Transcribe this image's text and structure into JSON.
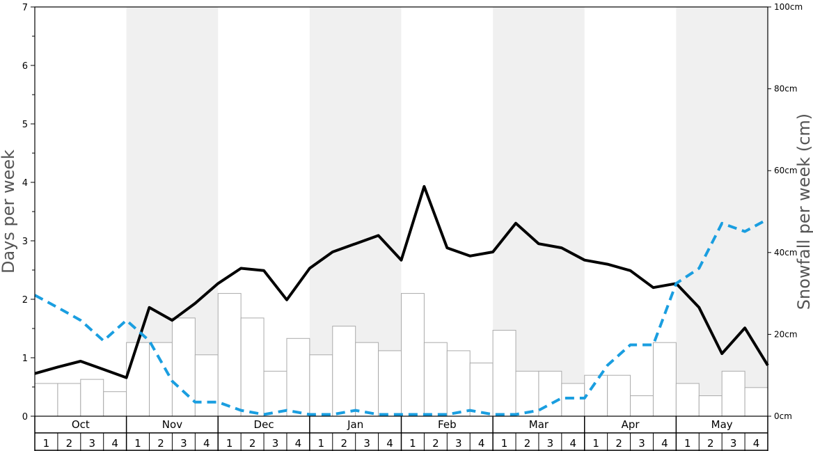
{
  "chart_data": {
    "type": "bar+line",
    "title": "",
    "ylabel": "Days per week",
    "y2label": "Snowfall per week (cm)",
    "ylim": [
      0,
      7
    ],
    "y2lim": [
      0,
      100
    ],
    "yticks": [
      "0",
      "1",
      "2",
      "3",
      "4",
      "5",
      "6",
      "7"
    ],
    "y2ticks": [
      "0cm",
      "20cm",
      "40cm",
      "60cm",
      "80cm",
      "100cm"
    ],
    "months": [
      "Oct",
      "Nov",
      "Dec",
      "Jan",
      "Feb",
      "Mar",
      "Apr",
      "May"
    ],
    "weeks": [
      "1",
      "2",
      "3",
      "4"
    ],
    "shaded_months": [
      "Nov",
      "Jan",
      "Mar",
      "May"
    ],
    "colors": {
      "bars_fill": "#ffffff",
      "bars_stroke": "#aaaaaa",
      "shade": "#f0f0f0",
      "solid_line": "#000000",
      "dashed_line": "#1a9ee0",
      "axis": "#000000"
    },
    "series": [
      {
        "kind": "bars",
        "axis": "right",
        "units": "cm",
        "values": [
          8,
          8,
          9,
          6,
          18,
          18,
          24,
          15,
          30,
          24,
          11,
          19,
          15,
          22,
          18,
          16,
          30,
          18,
          16,
          13,
          21,
          11,
          11,
          8,
          10,
          10,
          5,
          18,
          8,
          5,
          11,
          7
        ]
      },
      {
        "kind": "line",
        "style": "solid",
        "axis": "left",
        "values": [
          0.73,
          0.84,
          0.94,
          0.8,
          0.66,
          1.86,
          1.64,
          1.93,
          2.27,
          2.53,
          2.49,
          1.99,
          2.53,
          2.81,
          2.95,
          3.09,
          2.67,
          3.93,
          2.88,
          2.74,
          2.81,
          3.3,
          2.95,
          2.88,
          2.67,
          2.6,
          2.49,
          2.2,
          2.27,
          1.86,
          1.07,
          1.51,
          0.87
        ]
      },
      {
        "kind": "line",
        "style": "dashed",
        "axis": "left",
        "values": [
          2.07,
          1.86,
          1.64,
          1.29,
          1.64,
          1.29,
          0.6,
          0.24,
          0.24,
          0.1,
          0.03,
          0.1,
          0.03,
          0.03,
          0.1,
          0.03,
          0.03,
          0.03,
          0.03,
          0.1,
          0.03,
          0.03,
          0.1,
          0.31,
          0.31,
          0.87,
          1.22,
          1.22,
          2.27,
          2.53,
          3.3,
          3.16,
          3.37
        ]
      }
    ]
  }
}
